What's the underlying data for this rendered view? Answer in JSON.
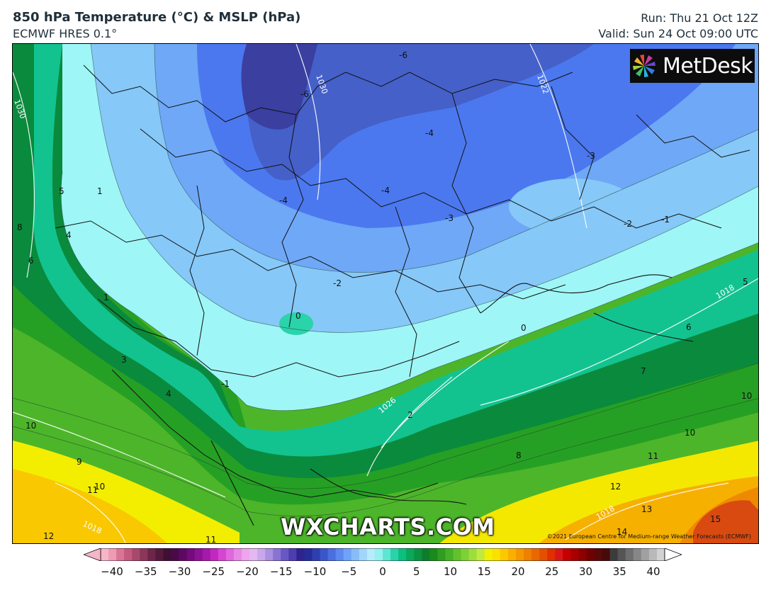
{
  "header": {
    "title": "850 hPa Temperature (°C) & MSLP (hPa)",
    "subtitle": "ECMWF HRES 0.1°",
    "run": "Run: Thu 21 Oct 12Z",
    "valid": "Valid: Sun 24 Oct 09:00 UTC"
  },
  "logo": {
    "text": "MetDesk",
    "icon": "metdesk-pinwheel-icon"
  },
  "watermark": "WXCHARTS.COM",
  "copyright": "©2021 European Centre for Medium-range Weather Forecasts (ECMWF)",
  "map": {
    "temperature_labels": [
      {
        "text": "-6"
      },
      {
        "text": "-6"
      },
      {
        "text": "-4"
      },
      {
        "text": "-4"
      },
      {
        "text": "-4"
      },
      {
        "text": "-3"
      },
      {
        "text": "-3"
      },
      {
        "text": "-2"
      },
      {
        "text": "-2"
      },
      {
        "text": "-1"
      },
      {
        "text": "-1"
      },
      {
        "text": "0"
      },
      {
        "text": "0"
      },
      {
        "text": "1"
      },
      {
        "text": "1"
      },
      {
        "text": "2"
      },
      {
        "text": "3"
      },
      {
        "text": "4"
      },
      {
        "text": "4"
      },
      {
        "text": "5"
      },
      {
        "text": "5"
      },
      {
        "text": "6"
      },
      {
        "text": "6"
      },
      {
        "text": "7"
      },
      {
        "text": "8"
      },
      {
        "text": "8"
      },
      {
        "text": "9"
      },
      {
        "text": "10"
      },
      {
        "text": "10"
      },
      {
        "text": "10"
      },
      {
        "text": "10"
      },
      {
        "text": "11"
      },
      {
        "text": "11"
      },
      {
        "text": "11"
      },
      {
        "text": "12"
      },
      {
        "text": "12"
      },
      {
        "text": "13"
      },
      {
        "text": "14"
      },
      {
        "text": "15"
      }
    ],
    "pressure_labels": [
      {
        "text": "1030"
      },
      {
        "text": "1030"
      },
      {
        "text": "1022"
      },
      {
        "text": "1018"
      },
      {
        "text": "1026"
      },
      {
        "text": "1018"
      },
      {
        "text": "1018"
      }
    ]
  },
  "scale": {
    "ticks": [
      "−40",
      "−35",
      "−30",
      "−25",
      "−20",
      "−15",
      "−10",
      "−5",
      "0",
      "5",
      "10",
      "15",
      "20",
      "25",
      "30",
      "35",
      "40"
    ],
    "colors": [
      "#f6b6c8",
      "#ee9bb4",
      "#d97596",
      "#c45a7e",
      "#a8486a",
      "#8b3758",
      "#6f2449",
      "#541a3c",
      "#3f0f35",
      "#4a0a4a",
      "#5e0863",
      "#740a7c",
      "#8c1194",
      "#a51aa9",
      "#c128bf",
      "#d645d1",
      "#e067dd",
      "#e888e6",
      "#efa4ee",
      "#e4b8f0",
      "#c9a8ea",
      "#aa90e0",
      "#8973d3",
      "#6957c3",
      "#4c3db0",
      "#2f238f",
      "#262d99",
      "#2e3fb0",
      "#3b56c9",
      "#4a6fe0",
      "#5c88f0",
      "#6fa3f7",
      "#86bdf8",
      "#a0d6fa",
      "#b6ecfb",
      "#95f0f0",
      "#5ee6d3",
      "#2ad3aa",
      "#0cbf7f",
      "#08a95b",
      "#0a9340",
      "#0d7d2b",
      "#1b8a1c",
      "#2e9e1f",
      "#46b026",
      "#62c22e",
      "#7ed135",
      "#9ede3c",
      "#c2e93d",
      "#f0f000",
      "#fce000",
      "#fcc800",
      "#f9b000",
      "#f59800",
      "#f08000",
      "#ea6800",
      "#e55000",
      "#e03000",
      "#d81818",
      "#c40000",
      "#a80000",
      "#8e0000",
      "#730000",
      "#5a0808",
      "#470a0a",
      "#3c3c3c",
      "#555555",
      "#6e6e6e",
      "#878787",
      "#a0a0a0",
      "#b9b9b9",
      "#d2d2d2"
    ]
  }
}
